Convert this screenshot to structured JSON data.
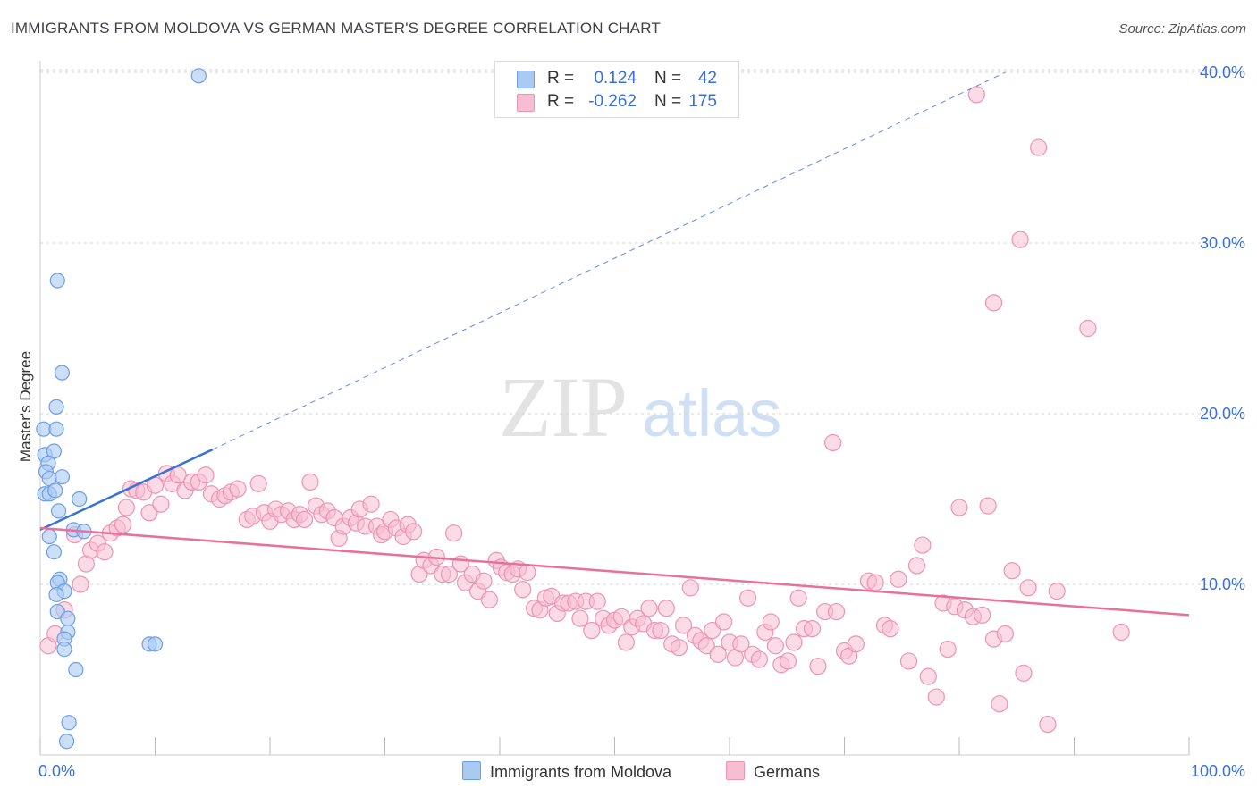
{
  "title": "IMMIGRANTS FROM MOLDOVA VS GERMAN MASTER'S DEGREE CORRELATION CHART",
  "source": "Source: ZipAtlas.com",
  "watermark": {
    "zip": "ZIP",
    "atlas": "atlas"
  },
  "legend_stats": [
    {
      "r_label": "R =",
      "r_value": "0.124",
      "n_label": "N =",
      "n_value": "42"
    },
    {
      "r_label": "R =",
      "r_value": "-0.262",
      "n_label": "N =",
      "n_value": "175"
    }
  ],
  "colors": {
    "blue_fill": "#aac9f3",
    "blue_stroke": "#6c9ee6",
    "blue_line": "#3772d4",
    "pink_fill": "#f7bed1",
    "pink_stroke": "#ee93b2",
    "pink_line": "#e8709a",
    "tick_label": "#3a6fd6",
    "grid": "#d5d5d5"
  },
  "chart_data": {
    "type": "scatter",
    "title": "IMMIGRANTS FROM MOLDOVA VS GERMAN MASTER'S DEGREE CORRELATION CHART",
    "xlabel": "",
    "ylabel": "Master's Degree",
    "xlim": [
      0,
      100
    ],
    "ylim": [
      0,
      41.5
    ],
    "x_tick_labels": [
      {
        "value": 0,
        "label": "0.0%"
      },
      {
        "value": 100,
        "label": "100.0%"
      }
    ],
    "y_tick_labels": [
      {
        "value": 10,
        "label": "10.0%"
      },
      {
        "value": 20,
        "label": "20.0%"
      },
      {
        "value": 30,
        "label": "30.0%"
      },
      {
        "value": 40,
        "label": "40.0%"
      }
    ],
    "grid": true,
    "legend_position": "bottom",
    "series": [
      {
        "name": "Immigrants from Moldova",
        "color": "#aac9f3",
        "trend": {
          "x0": 0,
          "y0": 13.2,
          "x1": 15,
          "y1": 17.9,
          "extends_dashed_to": {
            "x": 84,
            "y": 40
          }
        },
        "points": [
          [
            13.8,
            39.8
          ],
          [
            1.5,
            27.8
          ],
          [
            1.9,
            22.4
          ],
          [
            1.4,
            20.4
          ],
          [
            0.3,
            19.1
          ],
          [
            1.4,
            19.1
          ],
          [
            0.4,
            17.6
          ],
          [
            1.2,
            17.8
          ],
          [
            0.7,
            17.1
          ],
          [
            0.5,
            16.6
          ],
          [
            0.8,
            16.2
          ],
          [
            1.9,
            16.3
          ],
          [
            0.4,
            15.3
          ],
          [
            0.8,
            15.3
          ],
          [
            1.3,
            15.5
          ],
          [
            3.4,
            15.0
          ],
          [
            1.6,
            14.3
          ],
          [
            2.9,
            13.2
          ],
          [
            3.8,
            13.1
          ],
          [
            0.8,
            12.8
          ],
          [
            1.2,
            11.9
          ],
          [
            1.7,
            10.3
          ],
          [
            1.5,
            10.1
          ],
          [
            2.1,
            9.6
          ],
          [
            1.4,
            9.4
          ],
          [
            1.5,
            8.4
          ],
          [
            2.4,
            8.0
          ],
          [
            2.4,
            7.2
          ],
          [
            2.1,
            6.8
          ],
          [
            9.5,
            6.5
          ],
          [
            10.0,
            6.5
          ],
          [
            2.1,
            6.2
          ],
          [
            3.1,
            5.0
          ],
          [
            2.5,
            1.9
          ],
          [
            2.3,
            0.8
          ]
        ]
      },
      {
        "name": "Germans",
        "color": "#f7bed1",
        "trend": {
          "x0": 0,
          "y0": 13.3,
          "x1": 100,
          "y1": 8.2
        },
        "points": [
          [
            81.5,
            38.7
          ],
          [
            86.9,
            35.6
          ],
          [
            85.3,
            30.2
          ],
          [
            83.0,
            26.5
          ],
          [
            91.2,
            25.0
          ],
          [
            69.0,
            18.3
          ],
          [
            0.7,
            6.4
          ],
          [
            1.3,
            7.1
          ],
          [
            2.1,
            8.5
          ],
          [
            3.0,
            12.9
          ],
          [
            3.5,
            10.0
          ],
          [
            4.0,
            11.2
          ],
          [
            4.4,
            12.0
          ],
          [
            5.0,
            12.4
          ],
          [
            5.6,
            11.9
          ],
          [
            6.1,
            13.0
          ],
          [
            6.7,
            13.3
          ],
          [
            7.2,
            13.5
          ],
          [
            7.5,
            14.5
          ],
          [
            7.9,
            15.6
          ],
          [
            8.4,
            15.5
          ],
          [
            9.0,
            15.4
          ],
          [
            9.5,
            14.2
          ],
          [
            10.0,
            15.8
          ],
          [
            10.5,
            14.7
          ],
          [
            11.0,
            16.5
          ],
          [
            11.5,
            15.9
          ],
          [
            12.0,
            16.4
          ],
          [
            12.6,
            15.5
          ],
          [
            13.2,
            16.0
          ],
          [
            13.8,
            16.0
          ],
          [
            14.4,
            16.4
          ],
          [
            14.9,
            15.3
          ],
          [
            15.6,
            15.0
          ],
          [
            16.1,
            15.2
          ],
          [
            16.6,
            15.4
          ],
          [
            17.2,
            15.6
          ],
          [
            18.0,
            13.8
          ],
          [
            18.5,
            14.0
          ],
          [
            19.0,
            15.9
          ],
          [
            19.5,
            14.2
          ],
          [
            20.0,
            13.7
          ],
          [
            20.5,
            14.4
          ],
          [
            21.0,
            14.1
          ],
          [
            21.6,
            14.3
          ],
          [
            22.1,
            13.8
          ],
          [
            22.6,
            14.1
          ],
          [
            23.0,
            13.8
          ],
          [
            23.5,
            16.0
          ],
          [
            24.0,
            14.6
          ],
          [
            24.5,
            14.1
          ],
          [
            25.0,
            14.3
          ],
          [
            25.6,
            13.9
          ],
          [
            26.0,
            12.7
          ],
          [
            26.4,
            13.4
          ],
          [
            27.0,
            13.9
          ],
          [
            27.5,
            13.6
          ],
          [
            27.8,
            14.4
          ],
          [
            28.3,
            13.4
          ],
          [
            28.8,
            14.7
          ],
          [
            29.3,
            13.4
          ],
          [
            29.7,
            12.9
          ],
          [
            30.0,
            13.1
          ],
          [
            30.5,
            13.8
          ],
          [
            31.0,
            13.3
          ],
          [
            31.6,
            12.8
          ],
          [
            32.0,
            13.5
          ],
          [
            32.5,
            13.1
          ],
          [
            33.0,
            10.6
          ],
          [
            33.4,
            11.4
          ],
          [
            34.0,
            11.1
          ],
          [
            34.5,
            11.6
          ],
          [
            35.0,
            10.6
          ],
          [
            35.6,
            10.6
          ],
          [
            36.0,
            13.0
          ],
          [
            36.6,
            11.2
          ],
          [
            37.0,
            10.1
          ],
          [
            37.6,
            10.6
          ],
          [
            38.1,
            9.6
          ],
          [
            38.6,
            10.2
          ],
          [
            39.1,
            9.1
          ],
          [
            39.7,
            11.4
          ],
          [
            40.1,
            11.0
          ],
          [
            40.6,
            10.7
          ],
          [
            41.1,
            10.6
          ],
          [
            41.6,
            10.9
          ],
          [
            42.0,
            9.7
          ],
          [
            42.4,
            10.7
          ],
          [
            43.0,
            8.6
          ],
          [
            43.5,
            8.5
          ],
          [
            44.0,
            9.2
          ],
          [
            44.5,
            9.3
          ],
          [
            45.0,
            8.3
          ],
          [
            45.5,
            8.9
          ],
          [
            46.0,
            8.9
          ],
          [
            46.6,
            9.0
          ],
          [
            47.0,
            8.0
          ],
          [
            47.5,
            9.0
          ],
          [
            48.0,
            7.3
          ],
          [
            48.5,
            9.0
          ],
          [
            49.0,
            8.0
          ],
          [
            49.5,
            7.6
          ],
          [
            50.0,
            7.9
          ],
          [
            50.6,
            8.1
          ],
          [
            51.0,
            6.6
          ],
          [
            51.5,
            7.5
          ],
          [
            52.0,
            8.0
          ],
          [
            52.5,
            7.7
          ],
          [
            53.0,
            8.6
          ],
          [
            53.5,
            7.3
          ],
          [
            54.0,
            7.3
          ],
          [
            54.5,
            8.6
          ],
          [
            55.0,
            6.5
          ],
          [
            55.6,
            6.3
          ],
          [
            56.0,
            7.6
          ],
          [
            56.6,
            9.8
          ],
          [
            57.0,
            7.0
          ],
          [
            57.5,
            6.7
          ],
          [
            58.0,
            6.4
          ],
          [
            58.5,
            7.3
          ],
          [
            59.0,
            5.9
          ],
          [
            59.5,
            7.8
          ],
          [
            60.0,
            6.6
          ],
          [
            60.5,
            5.7
          ],
          [
            61.0,
            6.5
          ],
          [
            61.6,
            9.2
          ],
          [
            62.0,
            5.9
          ],
          [
            62.6,
            5.6
          ],
          [
            63.1,
            7.2
          ],
          [
            63.6,
            7.8
          ],
          [
            64.0,
            6.4
          ],
          [
            64.5,
            5.3
          ],
          [
            65.1,
            5.5
          ],
          [
            65.6,
            6.6
          ],
          [
            66.0,
            9.2
          ],
          [
            66.5,
            7.4
          ],
          [
            67.2,
            7.4
          ],
          [
            67.7,
            5.2
          ],
          [
            68.3,
            8.4
          ],
          [
            69.3,
            8.4
          ],
          [
            70.0,
            6.1
          ],
          [
            70.4,
            5.8
          ],
          [
            71.0,
            6.5
          ],
          [
            72.1,
            10.2
          ],
          [
            72.7,
            10.1
          ],
          [
            73.5,
            7.6
          ],
          [
            74.0,
            7.4
          ],
          [
            74.7,
            10.3
          ],
          [
            75.6,
            5.5
          ],
          [
            76.3,
            11.1
          ],
          [
            76.8,
            12.3
          ],
          [
            77.3,
            4.6
          ],
          [
            78.0,
            3.4
          ],
          [
            78.6,
            8.9
          ],
          [
            79.0,
            6.2
          ],
          [
            79.6,
            8.7
          ],
          [
            80.0,
            14.5
          ],
          [
            80.5,
            8.5
          ],
          [
            81.2,
            8.1
          ],
          [
            82.0,
            8.2
          ],
          [
            82.5,
            14.6
          ],
          [
            83.0,
            6.8
          ],
          [
            83.5,
            3.0
          ],
          [
            84.0,
            7.1
          ],
          [
            84.6,
            10.8
          ],
          [
            85.6,
            4.8
          ],
          [
            86.0,
            9.8
          ],
          [
            87.7,
            1.8
          ],
          [
            88.5,
            9.6
          ],
          [
            94.1,
            7.2
          ]
        ]
      }
    ]
  }
}
